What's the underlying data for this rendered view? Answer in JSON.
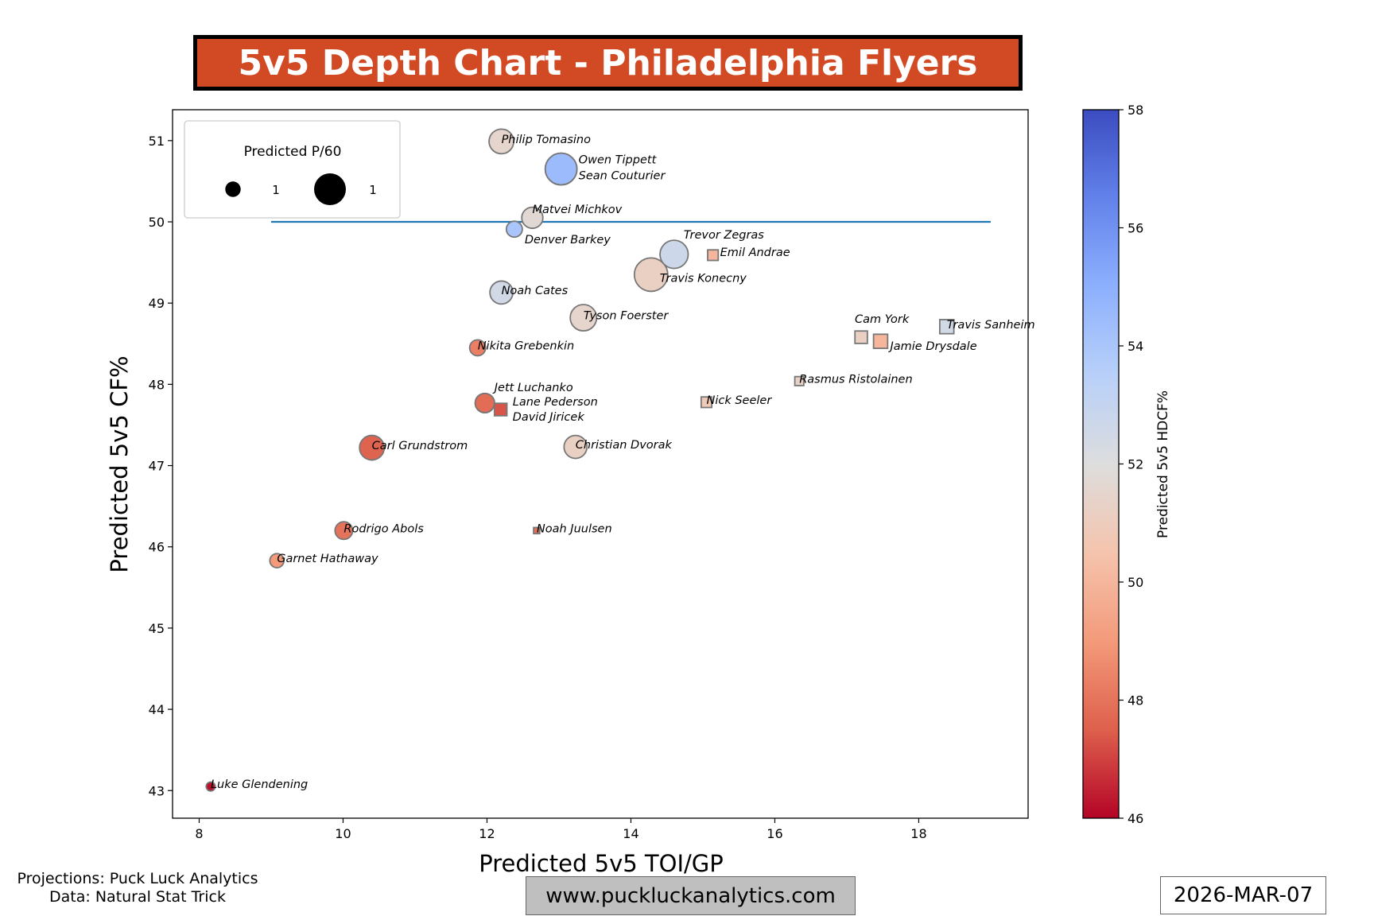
{
  "title": "5v5 Depth Chart - Philadelphia Flyers",
  "footer": {
    "projections": "Projections: Puck Luck Analytics",
    "data_source": "Data: Natural Stat Trick",
    "website": "www.puckluckanalytics.com",
    "date": "2026-MAR-07"
  },
  "chart_data": {
    "type": "scatter",
    "xlabel": "Predicted 5v5 TOI/GP",
    "ylabel": "Predicted 5v5 CF%",
    "xlim": [
      7.63,
      19.52
    ],
    "ylim": [
      42.66,
      51.38
    ],
    "xticks": [
      "8",
      "10",
      "12",
      "14",
      "16",
      "18"
    ],
    "yticks": [
      "43",
      "44",
      "45",
      "46",
      "47",
      "48",
      "49",
      "50",
      "51"
    ],
    "grid": false,
    "reference_line": {
      "y": 50,
      "x_from": 9,
      "x_to": 19,
      "color": "#1f77b4"
    },
    "size_legend": {
      "title": "Predicted P/60",
      "location": "top-left",
      "entries": [
        {
          "label": "1",
          "p60": 0.5
        },
        {
          "label": "1",
          "p60": 1.8
        }
      ]
    },
    "colorbar": {
      "label": "Predicted 5v5 HDCF%",
      "range": [
        46,
        58
      ],
      "ticks": [
        "46",
        "48",
        "50",
        "52",
        "54",
        "56",
        "58"
      ],
      "colormap": "coolwarm_r"
    },
    "shape_legend_note": "circle = forward, square = defense",
    "points": [
      {
        "name": "Philip Tomasino",
        "toi": 12.2,
        "cf": 50.99,
        "hdcf": 51.5,
        "p60": 0.98,
        "shape": "circle"
      },
      {
        "name": "Owen Tippett",
        "toi": 13.03,
        "cf": 50.65,
        "hdcf": 54.5,
        "p60": 1.62,
        "shape": "circle"
      },
      {
        "name": "Sean Couturier",
        "toi": 13.03,
        "cf": 50.65,
        "hdcf": 54.5,
        "p60": 1.62,
        "shape": "circle"
      },
      {
        "name": "Matvei Michkov",
        "toi": 12.63,
        "cf": 50.05,
        "hdcf": 51.7,
        "p60": 0.72,
        "shape": "circle"
      },
      {
        "name": "Denver Barkey",
        "toi": 12.38,
        "cf": 49.91,
        "hdcf": 54.0,
        "p60": 0.41,
        "shape": "circle"
      },
      {
        "name": "Trevor Zegras",
        "toi": 14.6,
        "cf": 49.6,
        "hdcf": 52.7,
        "p60": 1.28,
        "shape": "circle"
      },
      {
        "name": "Emil Andrae",
        "toi": 15.14,
        "cf": 49.59,
        "hdcf": 50.0,
        "p60": 0.18,
        "shape": "square"
      },
      {
        "name": "Travis Konecny",
        "toi": 14.28,
        "cf": 49.35,
        "hdcf": 51.2,
        "p60": 1.8,
        "shape": "circle"
      },
      {
        "name": "Noah Cates",
        "toi": 12.2,
        "cf": 49.13,
        "hdcf": 52.5,
        "p60": 0.85,
        "shape": "circle"
      },
      {
        "name": "Tyson Foerster",
        "toi": 13.34,
        "cf": 48.82,
        "hdcf": 51.5,
        "p60": 1.12,
        "shape": "circle"
      },
      {
        "name": "Nikita Grebenkin",
        "toi": 11.87,
        "cf": 48.45,
        "hdcf": 48.3,
        "p60": 0.41,
        "shape": "circle"
      },
      {
        "name": "Travis Sanheim",
        "toi": 18.39,
        "cf": 48.71,
        "hdcf": 52.5,
        "p60": 0.32,
        "shape": "square"
      },
      {
        "name": "Cam York",
        "toi": 17.2,
        "cf": 48.58,
        "hdcf": 51.2,
        "p60": 0.25,
        "shape": "square"
      },
      {
        "name": "Jamie Drysdale",
        "toi": 17.47,
        "cf": 48.53,
        "hdcf": 50.0,
        "p60": 0.32,
        "shape": "square"
      },
      {
        "name": "Rasmus Ristolainen",
        "toi": 16.34,
        "cf": 48.04,
        "hdcf": 51.3,
        "p60": 0.13,
        "shape": "square"
      },
      {
        "name": "Jett Luchanko",
        "toi": 11.97,
        "cf": 47.77,
        "hdcf": 47.8,
        "p60": 0.6,
        "shape": "circle"
      },
      {
        "name": "Lane Pederson",
        "toi": 11.97,
        "cf": 47.77,
        "hdcf": 47.8,
        "p60": 0.6,
        "shape": "circle"
      },
      {
        "name": "David Jiricek",
        "toi": 12.19,
        "cf": 47.69,
        "hdcf": 47.3,
        "p60": 0.25,
        "shape": "square"
      },
      {
        "name": "Nick Seeler",
        "toi": 15.05,
        "cf": 47.78,
        "hdcf": 50.8,
        "p60": 0.18,
        "shape": "square"
      },
      {
        "name": "Carl Grundstrom",
        "toi": 10.4,
        "cf": 47.22,
        "hdcf": 47.6,
        "p60": 0.98,
        "shape": "circle"
      },
      {
        "name": "Christian Dvorak",
        "toi": 13.23,
        "cf": 47.23,
        "hdcf": 51.2,
        "p60": 0.85,
        "shape": "circle"
      },
      {
        "name": "Rodrigo Abols",
        "toi": 10.01,
        "cf": 46.2,
        "hdcf": 48.0,
        "p60": 0.5,
        "shape": "circle"
      },
      {
        "name": "Noah Juulsen",
        "toi": 12.69,
        "cf": 46.2,
        "hdcf": 48.0,
        "p60": 0.06,
        "shape": "square"
      },
      {
        "name": "Garnet Hathaway",
        "toi": 9.08,
        "cf": 45.83,
        "hdcf": 49.0,
        "p60": 0.32,
        "shape": "circle"
      },
      {
        "name": "Luke Glendening",
        "toi": 8.16,
        "cf": 43.05,
        "hdcf": 46.2,
        "p60": 0.13,
        "shape": "circle"
      }
    ]
  }
}
